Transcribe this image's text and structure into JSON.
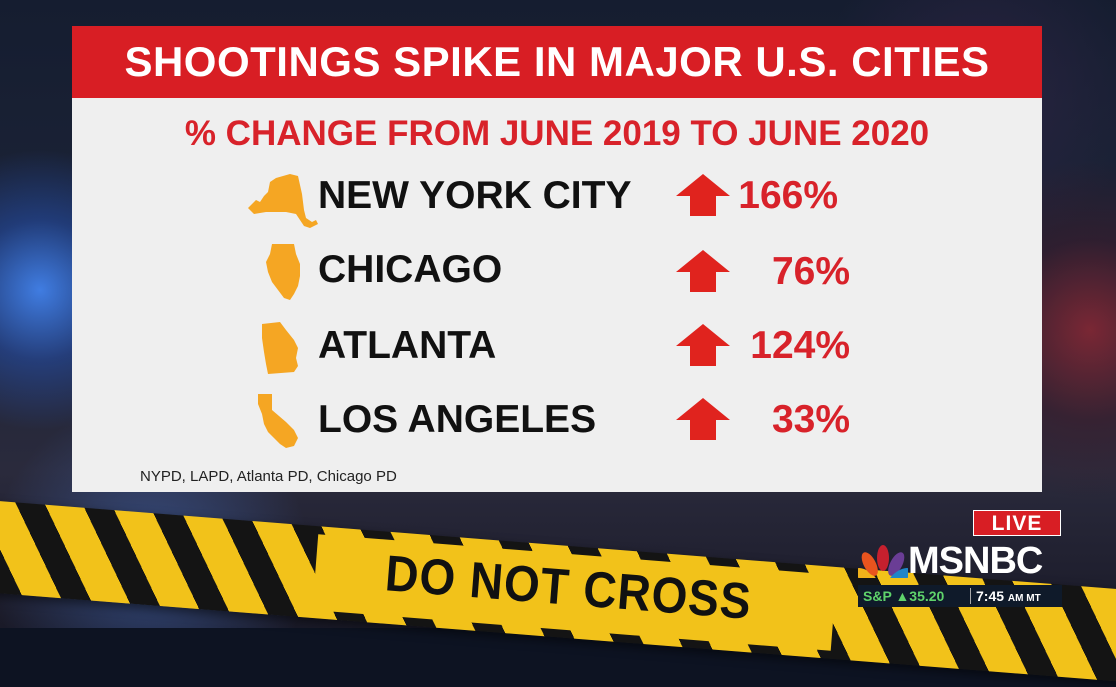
{
  "graphic": {
    "title": "SHOOTINGS SPIKE IN MAJOR U.S. CITIES",
    "subtitle": "% CHANGE FROM JUNE 2019 TO JUNE 2020",
    "source": "NYPD, LAPD, Atlanta PD, Chicago PD",
    "accent_color": "#d81e24",
    "icon_color": "#f5a623",
    "rows": [
      {
        "city": "NEW YORK CITY",
        "change": "166%",
        "state_icon": "new-york-state-icon",
        "direction": "up"
      },
      {
        "city": "CHICAGO",
        "change": "76%",
        "state_icon": "illinois-state-icon",
        "direction": "up"
      },
      {
        "city": "ATLANTA",
        "change": "124%",
        "state_icon": "georgia-state-icon",
        "direction": "up"
      },
      {
        "city": "LOS ANGELES",
        "change": "33%",
        "state_icon": "california-state-icon",
        "direction": "up"
      }
    ]
  },
  "background": {
    "tape_text": "DO NOT CROSS"
  },
  "broadcast": {
    "live_label": "LIVE",
    "network": "MSNBC",
    "ticker_label": "S&P",
    "ticker_direction": "▲",
    "ticker_value": "35.20",
    "time": "7:45",
    "time_suffix": "AM MT"
  }
}
